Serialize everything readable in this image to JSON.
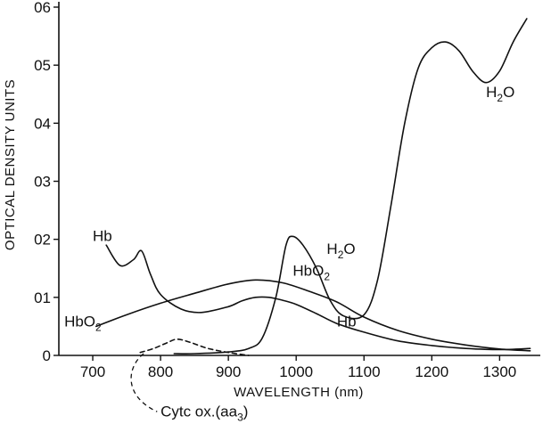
{
  "chart_data": {
    "type": "line",
    "xlabel": "WAVELENGTH (nm)",
    "ylabel": "OPTICAL DENSITY UNITS",
    "xlim": [
      650,
      1360
    ],
    "ylim": [
      0,
      0.6
    ],
    "xticks": [
      700,
      800,
      900,
      1000,
      1100,
      1200,
      1300
    ],
    "yticks": [
      {
        "value": 0,
        "label": "0"
      },
      {
        "value": 0.1,
        "label": "01"
      },
      {
        "value": 0.2,
        "label": "02"
      },
      {
        "value": 0.3,
        "label": "03"
      },
      {
        "value": 0.4,
        "label": "04"
      },
      {
        "value": 0.5,
        "label": "05"
      },
      {
        "value": 0.6,
        "label": "06"
      }
    ],
    "grid": false,
    "legend": "none",
    "series": [
      {
        "name": "Hb",
        "x": [
          720,
          740,
          760,
          772,
          785,
          800,
          830,
          860,
          900,
          920,
          940,
          960,
          980,
          1000,
          1030,
          1060,
          1100,
          1150,
          1200,
          1250,
          1300,
          1345
        ],
        "y": [
          0.19,
          0.155,
          0.165,
          0.18,
          0.14,
          0.105,
          0.08,
          0.074,
          0.084,
          0.094,
          0.1,
          0.1,
          0.095,
          0.088,
          0.072,
          0.055,
          0.04,
          0.025,
          0.017,
          0.012,
          0.01,
          0.012
        ]
      },
      {
        "name": "HbO₂",
        "x": [
          705,
          750,
          800,
          850,
          900,
          940,
          980,
          1020,
          1060,
          1100,
          1150,
          1200,
          1250,
          1300,
          1345
        ],
        "y": [
          0.05,
          0.07,
          0.09,
          0.107,
          0.123,
          0.13,
          0.125,
          0.11,
          0.092,
          0.066,
          0.043,
          0.028,
          0.018,
          0.011,
          0.008
        ]
      },
      {
        "name": "H₂O",
        "x": [
          820,
          850,
          900,
          930,
          950,
          970,
          985,
          995,
          1010,
          1030,
          1050,
          1070,
          1100,
          1120,
          1140,
          1160,
          1180,
          1200,
          1220,
          1240,
          1260,
          1280,
          1300,
          1320,
          1340
        ],
        "y": [
          0.003,
          0.003,
          0.006,
          0.012,
          0.03,
          0.1,
          0.19,
          0.205,
          0.19,
          0.15,
          0.095,
          0.068,
          0.07,
          0.13,
          0.26,
          0.4,
          0.495,
          0.53,
          0.54,
          0.525,
          0.49,
          0.47,
          0.49,
          0.54,
          0.58
        ]
      },
      {
        "name": "Cytc ox.(aa3)",
        "dashed": true,
        "x": [
          770,
          790,
          810,
          825,
          845,
          870,
          900,
          930
        ],
        "y": [
          0.005,
          0.012,
          0.022,
          0.028,
          0.022,
          0.012,
          0.005,
          0.0
        ]
      }
    ],
    "annotations": [
      {
        "text": "H",
        "sub": "2",
        "tail": "O",
        "series": "H₂O",
        "at": [
          1280,
          0.445
        ]
      },
      {
        "text": "H",
        "sub": "2",
        "tail": "O",
        "series": "H₂O",
        "at": [
          1045,
          0.175
        ]
      },
      {
        "text": "Hb",
        "series": "Hb",
        "at": [
          700,
          0.197
        ]
      },
      {
        "text": "HbO",
        "sub": "2",
        "tail": "",
        "series": "HbO₂",
        "at": [
          995,
          0.137
        ]
      },
      {
        "text": "Hb",
        "series": "Hb",
        "at": [
          1060,
          0.05
        ]
      },
      {
        "text": "HbO",
        "sub": "2",
        "tail": "",
        "series": "HbO₂",
        "at": [
          658,
          0.05
        ]
      },
      {
        "text": "Cytc ox.(aa",
        "sub": "3",
        "tail": ")",
        "series": "Cytc ox.(aa3)",
        "at": [
          800,
          -0.105
        ]
      }
    ]
  }
}
